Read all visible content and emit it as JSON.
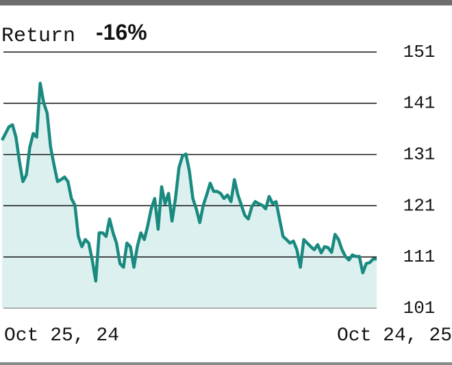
{
  "chart_data": {
    "type": "line",
    "title": "Return",
    "subtitle": "-16%",
    "x_labels": [
      "Oct 25, 24",
      "Oct 24, 25"
    ],
    "values": [
      133.8,
      135.1,
      136.4,
      136.8,
      134.4,
      129.7,
      125.7,
      127.0,
      132.4,
      135.1,
      134.4,
      144.9,
      141.1,
      139.1,
      132.4,
      128.9,
      125.7,
      126.1,
      126.6,
      125.7,
      122.4,
      121.1,
      115.0,
      113.0,
      114.4,
      113.7,
      110.4,
      106.3,
      115.7,
      115.7,
      115.0,
      118.4,
      115.7,
      113.7,
      109.7,
      109.0,
      113.7,
      113.0,
      109.0,
      113.0,
      115.7,
      114.4,
      117.1,
      120.4,
      122.4,
      116.4,
      124.7,
      121.4,
      123.4,
      118.0,
      122.4,
      128.4,
      130.7,
      131.1,
      127.8,
      122.4,
      120.4,
      117.7,
      121.1,
      123.1,
      125.4,
      123.8,
      123.8,
      123.4,
      122.4,
      123.1,
      121.8,
      126.1,
      123.1,
      121.1,
      119.1,
      118.4,
      120.8,
      121.8,
      121.4,
      121.1,
      120.4,
      122.8,
      121.4,
      121.8,
      118.4,
      115.0,
      114.4,
      113.7,
      114.1,
      112.4,
      109.0,
      114.4,
      113.7,
      113.0,
      112.4,
      113.4,
      111.8,
      113.0,
      112.8,
      111.9,
      115.4,
      114.4,
      112.4,
      111.1,
      110.4,
      111.4,
      111.1,
      111.1,
      107.9,
      109.7,
      109.9,
      110.6,
      110.6
    ],
    "color": "#1a8a80",
    "area_color": "#dcf1ef",
    "ylim": [
      101,
      151
    ],
    "yticks": [
      101,
      111,
      121,
      131,
      141,
      151
    ],
    "grid": true
  }
}
